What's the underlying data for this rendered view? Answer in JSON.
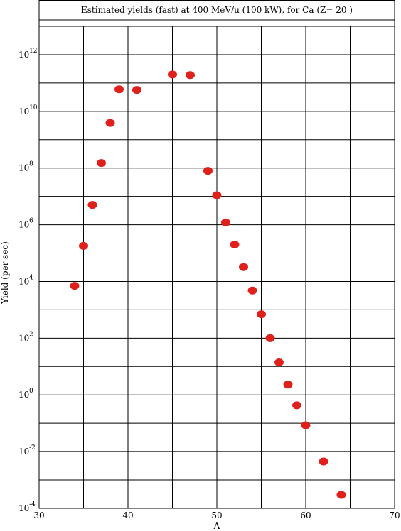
{
  "chart_data": {
    "type": "scatter",
    "title": "Estimated yields (fast) at 400 MeV/u (100 kW), for Ca (Z= 20 )",
    "xlabel": "A",
    "ylabel": "Yield (per sec)",
    "xlim": [
      30,
      70
    ],
    "ylim_log10": [
      -4,
      13
    ],
    "y_scale": "log",
    "grid": true,
    "x_ticks": [
      30,
      40,
      50,
      60,
      70
    ],
    "x_tick_labels": [
      "30",
      "40",
      "50",
      "60",
      "70"
    ],
    "y_ticks": [
      {
        "base": "10",
        "exp": "-4",
        "value": -4
      },
      {
        "base": "10",
        "exp": "-2",
        "value": -2
      },
      {
        "base": "10",
        "exp": "0",
        "value": 0
      },
      {
        "base": "10",
        "exp": "2",
        "value": 2
      },
      {
        "base": "10",
        "exp": "4",
        "value": 4
      },
      {
        "base": "10",
        "exp": "6",
        "value": 6
      },
      {
        "base": "10",
        "exp": "8",
        "value": 8
      },
      {
        "base": "10",
        "exp": "10",
        "value": 10
      },
      {
        "base": "10",
        "exp": "12",
        "value": 12
      }
    ],
    "marker_color": "#e0201b",
    "points": [
      {
        "x": 34,
        "y": 7000
      },
      {
        "x": 35,
        "y": 180000
      },
      {
        "x": 36,
        "y": 5000000
      },
      {
        "x": 37,
        "y": 150000000
      },
      {
        "x": 38,
        "y": 3900000000
      },
      {
        "x": 39,
        "y": 60000000000
      },
      {
        "x": 41,
        "y": 57000000000
      },
      {
        "x": 45,
        "y": 200000000000
      },
      {
        "x": 47,
        "y": 190000000000
      },
      {
        "x": 49,
        "y": 80000000
      },
      {
        "x": 50,
        "y": 11000000
      },
      {
        "x": 51,
        "y": 1200000
      },
      {
        "x": 52,
        "y": 200000
      },
      {
        "x": 53,
        "y": 32000
      },
      {
        "x": 54,
        "y": 4800
      },
      {
        "x": 55,
        "y": 700
      },
      {
        "x": 56,
        "y": 100
      },
      {
        "x": 57,
        "y": 14
      },
      {
        "x": 58,
        "y": 2.3
      },
      {
        "x": 59,
        "y": 0.43
      },
      {
        "x": 60,
        "y": 0.085
      },
      {
        "x": 62,
        "y": 0.0045
      },
      {
        "x": 64,
        "y": 0.0003
      }
    ]
  }
}
